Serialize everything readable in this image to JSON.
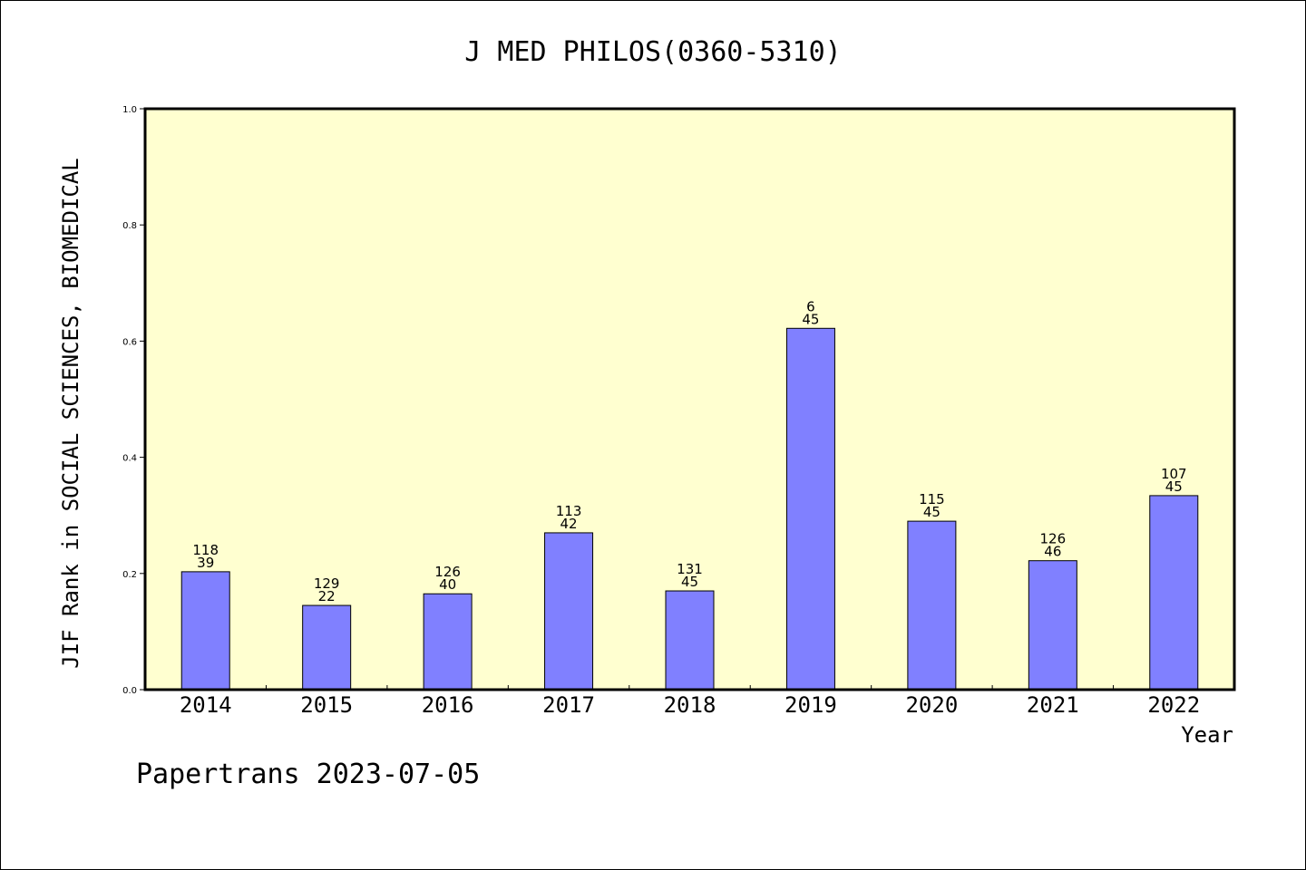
{
  "chart_data": {
    "type": "bar",
    "title": "J MED PHILOS(0360-5310)",
    "xlabel": "Year",
    "ylabel": "JIF Rank in SOCIAL SCIENCES, BIOMEDICAL",
    "ylim": [
      0,
      1.0
    ],
    "yticks": [
      "0.0",
      "0.2",
      "0.4",
      "0.6",
      "0.8",
      "1.0"
    ],
    "categories": [
      "2014",
      "2015",
      "2016",
      "2017",
      "2018",
      "2019",
      "2020",
      "2021",
      "2022"
    ],
    "values": [
      0.203,
      0.145,
      0.165,
      0.27,
      0.17,
      0.622,
      0.29,
      0.222,
      0.334
    ],
    "labels_top": [
      "118",
      "129",
      "126",
      "113",
      "131",
      "6",
      "115",
      "126",
      "107"
    ],
    "labels_bottom": [
      "39",
      "22",
      "40",
      "42",
      "45",
      "45",
      "45",
      "46",
      "45"
    ],
    "grid": false,
    "colors": {
      "plot_bg": "#ffffd0",
      "bar": "#8080ff",
      "bar_edge": "#000000"
    }
  },
  "footer": "Papertrans 2023-07-05"
}
